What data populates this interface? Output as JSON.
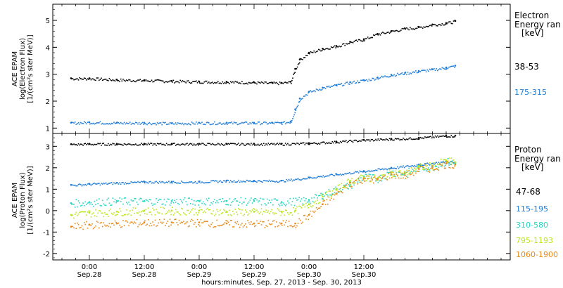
{
  "chart_data": [
    {
      "type": "scatter",
      "ylabel": [
        "ACE EPAM",
        "log(Electron Flux)",
        "[1/(cm²s ster MeV)]"
      ],
      "ylim": [
        0.8,
        5.6
      ],
      "yticks": [
        1,
        2,
        3,
        4,
        5
      ],
      "legend_title": [
        "Electron",
        "Energy ran",
        "[keV]"
      ],
      "legend_placement": "right",
      "series": [
        {
          "name": "38-53",
          "color": "#000000",
          "x": [
            -4,
            0,
            6,
            12,
            18,
            24,
            30,
            36,
            40,
            42,
            44,
            45,
            46,
            48,
            51,
            54,
            57,
            60,
            63,
            66,
            69,
            72,
            75,
            78,
            80
          ],
          "y": [
            2.85,
            2.85,
            2.8,
            2.78,
            2.75,
            2.73,
            2.72,
            2.7,
            2.68,
            2.68,
            2.72,
            3.2,
            3.55,
            3.8,
            3.95,
            4.05,
            4.2,
            4.3,
            4.5,
            4.6,
            4.7,
            4.75,
            4.85,
            4.9,
            4.98
          ]
        },
        {
          "name": "175-315",
          "color": "#1e7bd6",
          "x": [
            -4,
            0,
            6,
            12,
            18,
            24,
            30,
            36,
            40,
            42,
            44,
            45,
            46,
            48,
            51,
            54,
            57,
            60,
            63,
            66,
            69,
            72,
            75,
            78,
            80
          ],
          "y": [
            1.2,
            1.22,
            1.2,
            1.2,
            1.18,
            1.2,
            1.2,
            1.2,
            1.2,
            1.2,
            1.25,
            1.7,
            2.1,
            2.35,
            2.5,
            2.6,
            2.7,
            2.78,
            2.88,
            2.98,
            3.05,
            3.12,
            3.18,
            3.25,
            3.32
          ]
        }
      ]
    },
    {
      "type": "scatter",
      "ylabel": [
        "ACE EPAM",
        "log(Proton Flux)",
        "[1/(cm²s ster MeV)]"
      ],
      "ylim": [
        -2.3,
        3.6
      ],
      "yticks": [
        -2,
        -1,
        0,
        1,
        2,
        3
      ],
      "legend_title": [
        "Proton",
        "Energy ran",
        "[keV]"
      ],
      "legend_placement": "right",
      "series": [
        {
          "name": "47-68",
          "color": "#000000",
          "x": [
            -4,
            0,
            6,
            12,
            18,
            24,
            30,
            36,
            42,
            48,
            54,
            60,
            66,
            72,
            78,
            80
          ],
          "y": [
            3.1,
            3.12,
            3.12,
            3.12,
            3.12,
            3.12,
            3.12,
            3.12,
            3.12,
            3.15,
            3.22,
            3.3,
            3.35,
            3.4,
            3.5,
            3.5
          ]
        },
        {
          "name": "115-195",
          "color": "#1e7bd6",
          "x": [
            -4,
            0,
            6,
            12,
            18,
            24,
            30,
            36,
            42,
            48,
            54,
            60,
            66,
            72,
            78,
            80
          ],
          "y": [
            1.2,
            1.25,
            1.3,
            1.35,
            1.35,
            1.35,
            1.4,
            1.4,
            1.4,
            1.55,
            1.7,
            1.85,
            2.0,
            2.15,
            2.3,
            2.25
          ]
        },
        {
          "name": "310-580",
          "color": "#25d6c3",
          "x": [
            -4,
            0,
            6,
            12,
            18,
            24,
            30,
            36,
            42,
            48,
            51,
            54,
            57,
            60,
            63,
            66,
            69,
            72,
            75,
            78,
            80
          ],
          "y": [
            0.35,
            0.4,
            0.45,
            0.45,
            0.45,
            0.45,
            0.45,
            0.45,
            0.4,
            0.5,
            0.75,
            1.0,
            1.2,
            1.6,
            1.5,
            1.8,
            1.75,
            2.0,
            2.05,
            2.3,
            2.2
          ]
        },
        {
          "name": "795-1193",
          "color": "#b8e61a",
          "x": [
            -4,
            0,
            6,
            12,
            18,
            24,
            30,
            36,
            42,
            45,
            48,
            51,
            54,
            57,
            60,
            63,
            66,
            69,
            72,
            75,
            78,
            80
          ],
          "y": [
            -0.2,
            -0.1,
            -0.05,
            0.0,
            0.0,
            0.0,
            -0.05,
            -0.05,
            -0.05,
            0.0,
            0.3,
            0.65,
            1.0,
            1.4,
            1.55,
            1.5,
            1.8,
            1.75,
            2.05,
            2.1,
            2.35,
            2.25
          ]
        },
        {
          "name": "1060-1900",
          "color": "#e88a1a",
          "x": [
            -4,
            0,
            6,
            12,
            18,
            24,
            30,
            36,
            42,
            45,
            48,
            51,
            54,
            57,
            60,
            63,
            66,
            69,
            72,
            75,
            78,
            80
          ],
          "y": [
            -0.75,
            -0.65,
            -0.6,
            -0.55,
            -0.55,
            -0.55,
            -0.6,
            -0.6,
            -0.6,
            -0.6,
            -0.2,
            0.3,
            0.8,
            1.3,
            1.5,
            1.45,
            1.7,
            1.65,
            1.95,
            2.0,
            2.2,
            2.15
          ]
        }
      ]
    }
  ],
  "x_axis": {
    "range_hours": [
      -8,
      92
    ],
    "ticks": [
      {
        "hours": 0,
        "time": "0:00",
        "date": "Sep.28"
      },
      {
        "hours": 12,
        "time": "12:00",
        "date": "Sep.28"
      },
      {
        "hours": 24,
        "time": "0:00",
        "date": "Sep.29"
      },
      {
        "hours": 36,
        "time": "12:00",
        "date": "Sep.29"
      },
      {
        "hours": 48,
        "time": "0:00",
        "date": "Sep.30"
      },
      {
        "hours": 60,
        "time": "12:00",
        "date": "Sep.30"
      }
    ],
    "label": "hours:minutes, Sep. 27, 2013 - Sep. 30, 2013"
  }
}
